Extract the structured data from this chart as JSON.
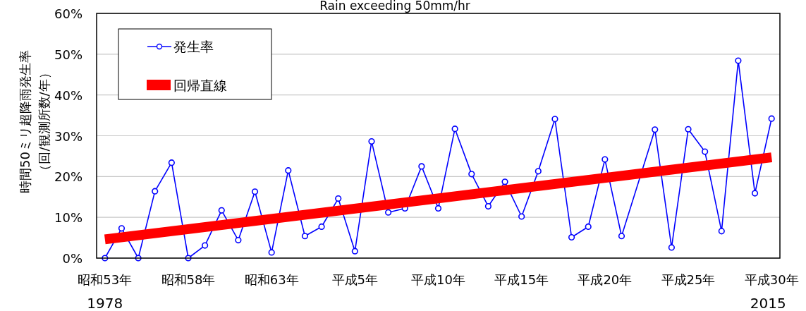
{
  "chart_data": {
    "type": "line",
    "title": "Rain exceeding 50mm/hr",
    "ylabel": "時間50ミリ超降雨発生率（回/観測所数/年）",
    "categories": [
      "昭和53年",
      null,
      null,
      null,
      null,
      "昭和58年",
      null,
      null,
      null,
      null,
      "昭和63年",
      null,
      null,
      null,
      null,
      "平成5年",
      null,
      null,
      null,
      null,
      "平成10年",
      null,
      null,
      null,
      null,
      "平成15年",
      null,
      null,
      null,
      null,
      "平成20年",
      null,
      null,
      null,
      null,
      "平成25年",
      null,
      null,
      null,
      null,
      "平成30年"
    ],
    "series": [
      {
        "name": "発生率",
        "color": "#0000ff",
        "marker": "circle",
        "line_style": "solid",
        "values": [
          0,
          7.3,
          0,
          16.4,
          23.4,
          0,
          3.1,
          11.7,
          4.4,
          16.3,
          1.4,
          21.5,
          5.4,
          7.7,
          14.6,
          1.7,
          28.6,
          11.2,
          12.2,
          22.5,
          12.2,
          31.7,
          20.6,
          12.7,
          18.7,
          10.2,
          21.3,
          34.1,
          5.1,
          7.7,
          24.2,
          5.4,
          null,
          31.5,
          2.6,
          31.6,
          26.1,
          6.6,
          48.4,
          15.9,
          34.2
        ]
      },
      {
        "name": "回帰直線",
        "type": "line",
        "color": "#ff0000",
        "marker": "none",
        "line_style": "solid",
        "values": [
          4.6,
          null,
          null,
          null,
          null,
          null,
          null,
          null,
          null,
          null,
          null,
          null,
          null,
          null,
          null,
          null,
          null,
          null,
          null,
          null,
          null,
          null,
          null,
          null,
          null,
          null,
          null,
          null,
          null,
          null,
          null,
          null,
          null,
          null,
          null,
          null,
          null,
          null,
          null,
          null,
          24.7
        ]
      }
    ],
    "ylim": [
      0,
      60
    ],
    "yticks": [
      {
        "value": 0,
        "label": "0%"
      },
      {
        "value": 10,
        "label": "10%"
      },
      {
        "value": 20,
        "label": "20%"
      },
      {
        "value": 30,
        "label": "30%"
      },
      {
        "value": 40,
        "label": "40%"
      },
      {
        "value": 50,
        "label": "50%"
      },
      {
        "value": 60,
        "label": "60%"
      }
    ],
    "grid": "y",
    "legend": "top left",
    "annotations": [
      "1978",
      "2015"
    ]
  }
}
